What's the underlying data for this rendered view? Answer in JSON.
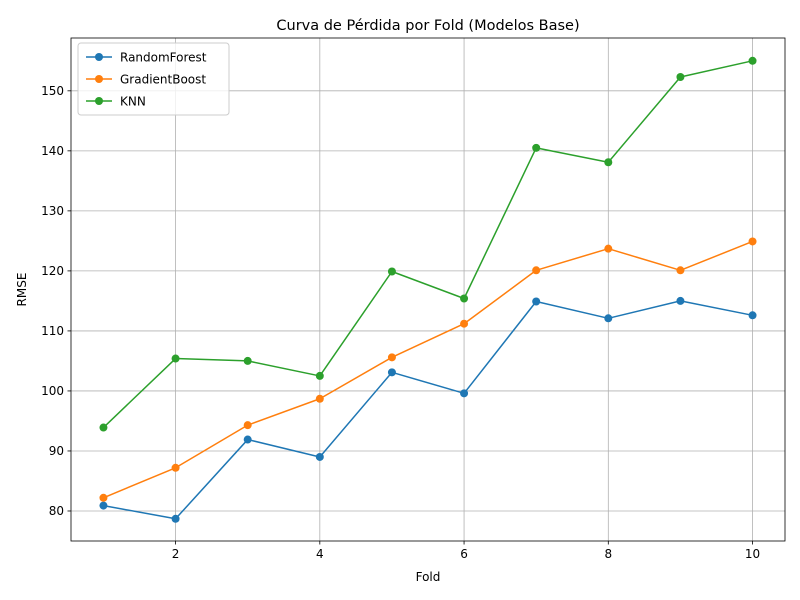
{
  "chart_data": {
    "type": "line",
    "title": "Curva de Pérdida por Fold (Modelos Base)",
    "xlabel": "Fold",
    "ylabel": "RMSE",
    "x": [
      1,
      2,
      3,
      4,
      5,
      6,
      7,
      8,
      9,
      10
    ],
    "xlim": [
      0.55,
      10.45
    ],
    "ylim": [
      75,
      158.8
    ],
    "xticks": [
      2,
      4,
      6,
      8,
      10
    ],
    "yticks": [
      80,
      90,
      100,
      110,
      120,
      130,
      140,
      150
    ],
    "grid": true,
    "legend_position": "upper-left",
    "series": [
      {
        "name": "RandomForest",
        "color": "#1f77b4",
        "values": [
          80.9,
          78.7,
          91.9,
          89.0,
          103.1,
          99.6,
          114.9,
          112.1,
          115.0,
          112.6
        ]
      },
      {
        "name": "GradientBoost",
        "color": "#ff7f0e",
        "values": [
          82.2,
          87.2,
          94.3,
          98.7,
          105.6,
          111.2,
          120.1,
          123.7,
          120.1,
          124.9
        ]
      },
      {
        "name": "KNN",
        "color": "#2ca02c",
        "values": [
          93.9,
          105.4,
          105.0,
          102.5,
          119.9,
          115.4,
          140.5,
          138.1,
          152.3,
          155.0
        ]
      }
    ]
  }
}
